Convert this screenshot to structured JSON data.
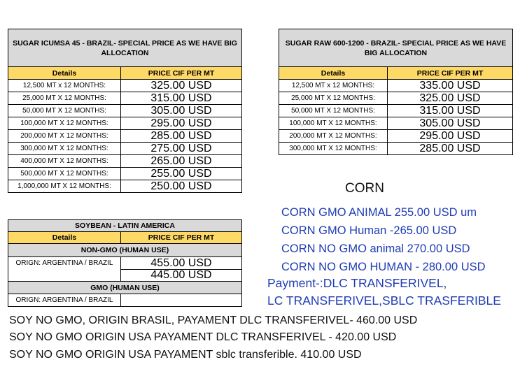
{
  "sugar_icumsa": {
    "title": "SUGAR ICUMSA 45 - BRAZIL- SPECIAL PRICE AS WE HAVE BIG ALLOCATION",
    "col_details": "Details",
    "col_price": "PRICE CIF PER MT",
    "rows": [
      {
        "detail": "12,500 MT x 12 MONTHS:",
        "price": "325.00 USD"
      },
      {
        "detail": "25,000 MT X 12 MONTHS:",
        "price": "315.00 USD"
      },
      {
        "detail": "50,000 MT X 12 MONTHS:",
        "price": "305.00 USD"
      },
      {
        "detail": "100,000 MT X 12 MONTHS:",
        "price": "295.00 USD"
      },
      {
        "detail": "200,000 MT X 12 MONTHS:",
        "price": "285.00 USD"
      },
      {
        "detail": "300,000 MT X 12 MONTHS:",
        "price": "275.00 USD"
      },
      {
        "detail": "400,000 MT X 12 MONTHS:",
        "price": "265.00 USD"
      },
      {
        "detail": "500,000 MT X 12 MONTHS:",
        "price": "255.00 USD"
      },
      {
        "detail": "1,000,000 MT X 12 MONTHS:",
        "price": "250.00 USD"
      }
    ]
  },
  "sugar_raw": {
    "title": "SUGAR RAW 600-1200 - BRAZIL- SPECIAL PRICE AS WE HAVE BIG ALLOCATION",
    "col_details": "Details",
    "col_price": "PRICE CIF PER MT",
    "rows": [
      {
        "detail": "12,500 MT x 12 MONTHS:",
        "price": "335.00 USD"
      },
      {
        "detail": "25,000 MT X 12 MONTHS:",
        "price": "325.00 USD"
      },
      {
        "detail": "50,000 MT X 12 MONTHS:",
        "price": "315.00 USD"
      },
      {
        "detail": "100,000 MT X 12 MONTHS:",
        "price": "305.00 USD"
      },
      {
        "detail": "200,000 MT X 12 MONTHS:",
        "price": "295.00 USD"
      },
      {
        "detail": "300,000 MT X 12 MONTHS:",
        "price": "285.00 USD"
      }
    ]
  },
  "soybean": {
    "title": "SOYBEAN - LATIN AMERICA",
    "col_details": "Details",
    "col_price": "PRICE CIF PER MT",
    "non_gmo_label": "NON-GMO (HUMAN USE)",
    "non_gmo_origin": "ORIGN: ARGENTINA / BRAZIL",
    "non_gmo_price_1": "455.00 USD",
    "non_gmo_price_2": "445.00 USD",
    "gmo_label": "GMO (HUMAN USE)",
    "gmo_origin": "ORIGN: ARGENTINA / BRAZIL",
    "gmo_price": ""
  },
  "corn": {
    "heading": "CORN",
    "lines": [
      "CORN GMO ANIMAL 255.00 USD um",
      "CORN GMO Human -265.00 USD",
      "CORN NO GMO animal 270.00 USD",
      "CORN NO GMO HUMAN - 280.00 USD"
    ],
    "payment_1": "Payment-:DLC TRANSFERIVEL,",
    "payment_2": "LC TRANSFERIVEL,SBLC TRASFERIBLE"
  },
  "soy_lines": [
    "SOY NO GMO, ORIGIN BRASIL, PAYAMENT DLC TRANSFERIVEL- 460.00 USD",
    "SOY NO GMO ORIGIN USA PAYAMENT DLC TRANSFERIVEL - 420.00 USD",
    "SOY NO GMO ORIGIN USA PAYAMENT sblc transferible.  410.00 USD"
  ],
  "colors": {
    "header_gray": "#d9d9d9",
    "subheader_yellow": "#ffd966",
    "corn_blue": "#1f3cb5"
  }
}
